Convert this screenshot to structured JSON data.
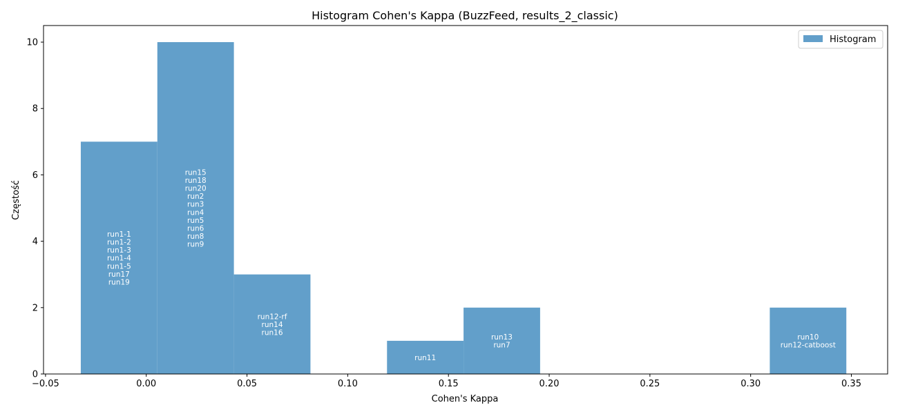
{
  "chart_data": {
    "type": "bar",
    "title": "Histogram Cohen's Kappa (BuzzFeed, results_2_classic)",
    "xlabel": "Cohen's Kappa",
    "ylabel": "Częstość",
    "xlim": [
      -0.051,
      0.368
    ],
    "ylim": [
      0,
      10.5
    ],
    "x_ticks": [
      "−0.05",
      "0.00",
      "0.05",
      "0.10",
      "0.15",
      "0.20",
      "0.25",
      "0.30",
      "0.35"
    ],
    "x_tick_values": [
      -0.05,
      0.0,
      0.05,
      0.1,
      0.15,
      0.2,
      0.25,
      0.3,
      0.35
    ],
    "y_ticks": [
      "0",
      "2",
      "4",
      "6",
      "8",
      "10"
    ],
    "y_tick_values": [
      0,
      2,
      4,
      6,
      8,
      10
    ],
    "grid": false,
    "legend": {
      "position": "top-right",
      "entries": [
        "Histogram"
      ]
    },
    "color": "#629fca",
    "bins": [
      {
        "x0": -0.0325,
        "x1": 0.0055,
        "count": 7,
        "labels": [
          "run1-1",
          "run1-2",
          "run1-3",
          "run1-4",
          "run1-5",
          "run17",
          "run19"
        ]
      },
      {
        "x0": 0.0055,
        "x1": 0.0435,
        "count": 10,
        "labels": [
          "run15",
          "run18",
          "run20",
          "run2",
          "run3",
          "run4",
          "run5",
          "run6",
          "run8",
          "run9"
        ]
      },
      {
        "x0": 0.0435,
        "x1": 0.0815,
        "count": 3,
        "labels": [
          "run12-rf",
          "run14",
          "run16"
        ]
      },
      {
        "x0": 0.0815,
        "x1": 0.1195,
        "count": 0,
        "labels": []
      },
      {
        "x0": 0.1195,
        "x1": 0.1575,
        "count": 1,
        "labels": [
          "run11"
        ]
      },
      {
        "x0": 0.1575,
        "x1": 0.1955,
        "count": 2,
        "labels": [
          "run13",
          "run7"
        ]
      },
      {
        "x0": 0.1955,
        "x1": 0.2335,
        "count": 0,
        "labels": []
      },
      {
        "x0": 0.2335,
        "x1": 0.2715,
        "count": 0,
        "labels": []
      },
      {
        "x0": 0.2715,
        "x1": 0.3095,
        "count": 0,
        "labels": []
      },
      {
        "x0": 0.3095,
        "x1": 0.3475,
        "count": 2,
        "labels": [
          "run10",
          "run12-catboost"
        ]
      }
    ]
  }
}
